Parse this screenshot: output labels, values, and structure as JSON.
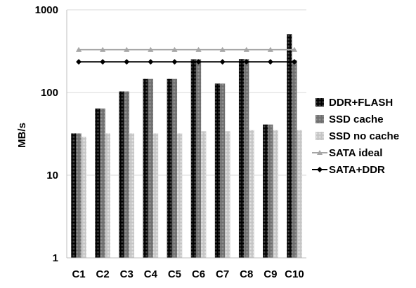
{
  "chart_data": {
    "type": "bar",
    "title": "",
    "xlabel": "",
    "ylabel": "MB/s",
    "yscale": "log",
    "ylim": [
      1,
      1000
    ],
    "yticks": [
      1,
      10,
      100,
      1000
    ],
    "ytick_labels": [
      "1",
      "10",
      "100",
      "1000"
    ],
    "grid": "horizontal major gridlines",
    "legend_position": "right",
    "categories": [
      "C1",
      "C2",
      "C3",
      "C4",
      "C5",
      "C6",
      "C7",
      "C8",
      "C9",
      "C10"
    ],
    "series": [
      {
        "name": "DDR+FLASH",
        "kind": "bar",
        "color": "#1a1a1a",
        "pattern": "black checker",
        "values": [
          32,
          64,
          103,
          146,
          146,
          252,
          128,
          254,
          41,
          505
        ]
      },
      {
        "name": "SSD cache",
        "kind": "bar",
        "color": "#7f7f7f",
        "pattern": "dark gray checker",
        "values": [
          32,
          64,
          103,
          146,
          146,
          252,
          128,
          254,
          41,
          245
        ]
      },
      {
        "name": "SSD no cache",
        "kind": "bar",
        "color": "#d0d0d0",
        "pattern": "light gray checker",
        "values": [
          29,
          32,
          32,
          32,
          32,
          34,
          34,
          35,
          35,
          35
        ]
      },
      {
        "name": "SATA ideal",
        "kind": "line",
        "color": "#a6a6a6",
        "marker": "triangle",
        "values": [
          330,
          330,
          330,
          330,
          330,
          330,
          330,
          330,
          330,
          330
        ]
      },
      {
        "name": "SATA+DDR",
        "kind": "line",
        "color": "#000000",
        "marker": "diamond",
        "values": [
          235,
          235,
          235,
          235,
          235,
          235,
          235,
          235,
          235,
          235
        ]
      }
    ]
  }
}
